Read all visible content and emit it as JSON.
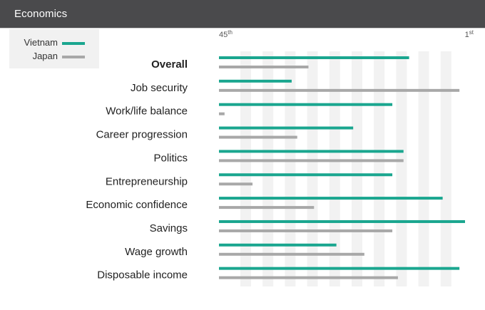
{
  "header": {
    "title": "Economics"
  },
  "legend": {
    "items": [
      {
        "name": "Vietnam",
        "color": "#1aa68f"
      },
      {
        "name": "Japan",
        "color": "#a8a8a8"
      }
    ]
  },
  "chart_data": {
    "type": "bar",
    "orientation": "horizontal",
    "x_axis": {
      "left_label": {
        "base": "45",
        "suffix": "th"
      },
      "right_label": {
        "base": "1",
        "suffix": "st"
      },
      "min_rank": 45,
      "max_rank": 1
    },
    "background_stripes": true,
    "categories": [
      "Overall",
      "Job security",
      "Work/life balance",
      "Career progression",
      "Politics",
      "Entrepreneurship",
      "Economic confidence",
      "Savings",
      "Wage growth",
      "Disposable income"
    ],
    "bold_categories": [
      "Overall"
    ],
    "series": [
      {
        "name": "Vietnam",
        "color": "#1aa68f",
        "values": [
          11,
          32,
          14,
          21,
          12,
          14,
          5,
          1,
          24,
          2
        ]
      },
      {
        "name": "Japan",
        "color": "#a8a8a8",
        "values": [
          29,
          2,
          44,
          31,
          12,
          39,
          28,
          14,
          19,
          13
        ]
      }
    ]
  }
}
